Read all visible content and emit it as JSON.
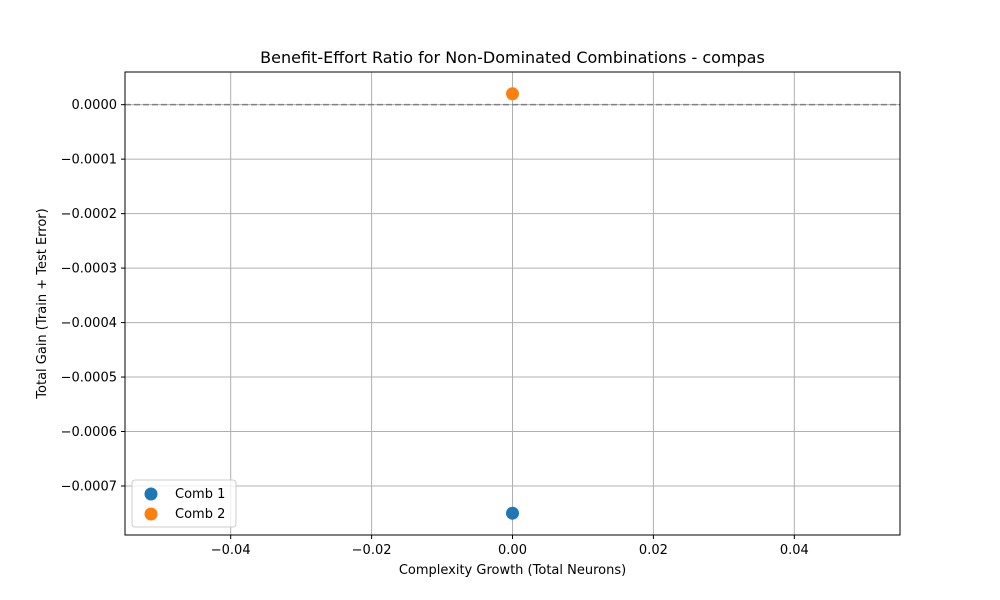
{
  "chart_data": {
    "type": "scatter",
    "title": "Benefit-Effort Ratio for Non-Dominated Combinations - compas",
    "xlabel": "Complexity Growth (Total Neurons)",
    "ylabel": "Total Gain (Train + Test Error)",
    "xlim": [
      -0.055,
      0.055
    ],
    "ylim": [
      -0.00079,
      6e-05
    ],
    "x_ticks": [
      -0.04,
      -0.02,
      0.0,
      0.02,
      0.04
    ],
    "x_tick_labels": [
      "−0.04",
      "−0.02",
      "0.00",
      "0.02",
      "0.04"
    ],
    "y_ticks": [
      0.0,
      -0.0001,
      -0.0002,
      -0.0003,
      -0.0004,
      -0.0005,
      -0.0006,
      -0.0007
    ],
    "y_tick_labels": [
      "0.0000",
      "−0.0001",
      "−0.0002",
      "−0.0003",
      "−0.0004",
      "−0.0005",
      "−0.0006",
      "−0.0007"
    ],
    "grid": true,
    "reference_line": {
      "y": 0.0,
      "style": "dashed",
      "color": "#808080"
    },
    "legend_position": "lower-left",
    "series": [
      {
        "name": "Comb 1",
        "color": "#1f77b4",
        "points": [
          {
            "x": 0.0,
            "y": -0.00075
          }
        ]
      },
      {
        "name": "Comb 2",
        "color": "#ff7f0e",
        "points": [
          {
            "x": 0.0,
            "y": 2e-05
          }
        ]
      }
    ]
  }
}
